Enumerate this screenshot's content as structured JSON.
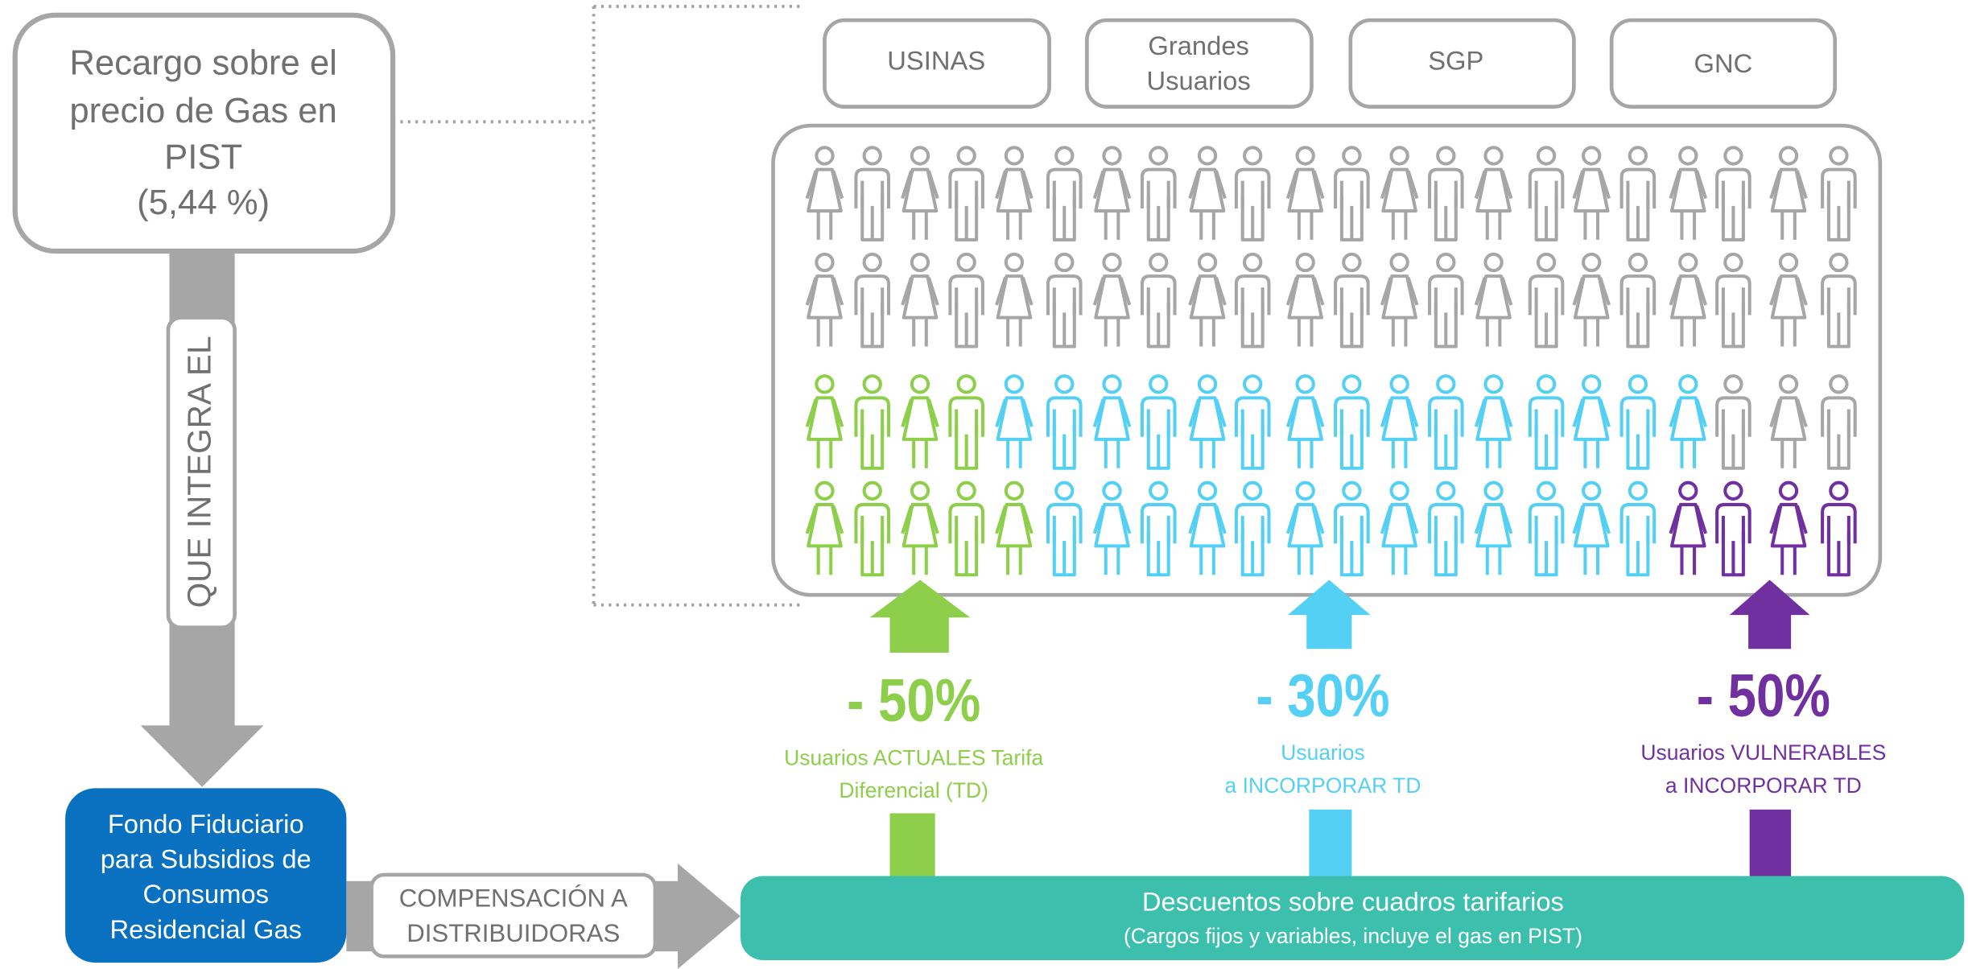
{
  "source": {
    "lines": [
      "Recargo sobre el",
      "precio de Gas en",
      "PIST",
      "(5,44 %)"
    ]
  },
  "flow_label": "QUE INTEGRA EL",
  "fund": {
    "lines": [
      "Fondo Fiduciario",
      "para Subsidios de",
      "Consumos",
      "Residencial Gas"
    ]
  },
  "compensation": {
    "lines": [
      "COMPENSACIÓN A",
      "DISTRIBUIDORAS"
    ]
  },
  "categories": [
    {
      "lines": [
        "USINAS"
      ]
    },
    {
      "lines": [
        "Grandes",
        "Usuarios"
      ]
    },
    {
      "lines": [
        "SGP"
      ]
    },
    {
      "lines": [
        "GNC"
      ]
    }
  ],
  "groups": [
    {
      "discount": "- 50%",
      "lines": [
        "Usuarios ACTUALES Tarifa",
        "Diferencial (TD)"
      ]
    },
    {
      "discount": "- 30%",
      "lines": [
        "Usuarios",
        "a INCORPORAR TD"
      ]
    },
    {
      "discount": "- 50%",
      "lines": [
        "Usuarios VULNERABLES",
        "a INCORPORAR TD"
      ]
    }
  ],
  "discount_bar": {
    "title": "Descuentos sobre cuadros tarifarios",
    "subtitle": "(Cargos fijos y variables, incluye el gas en PIST)"
  }
}
